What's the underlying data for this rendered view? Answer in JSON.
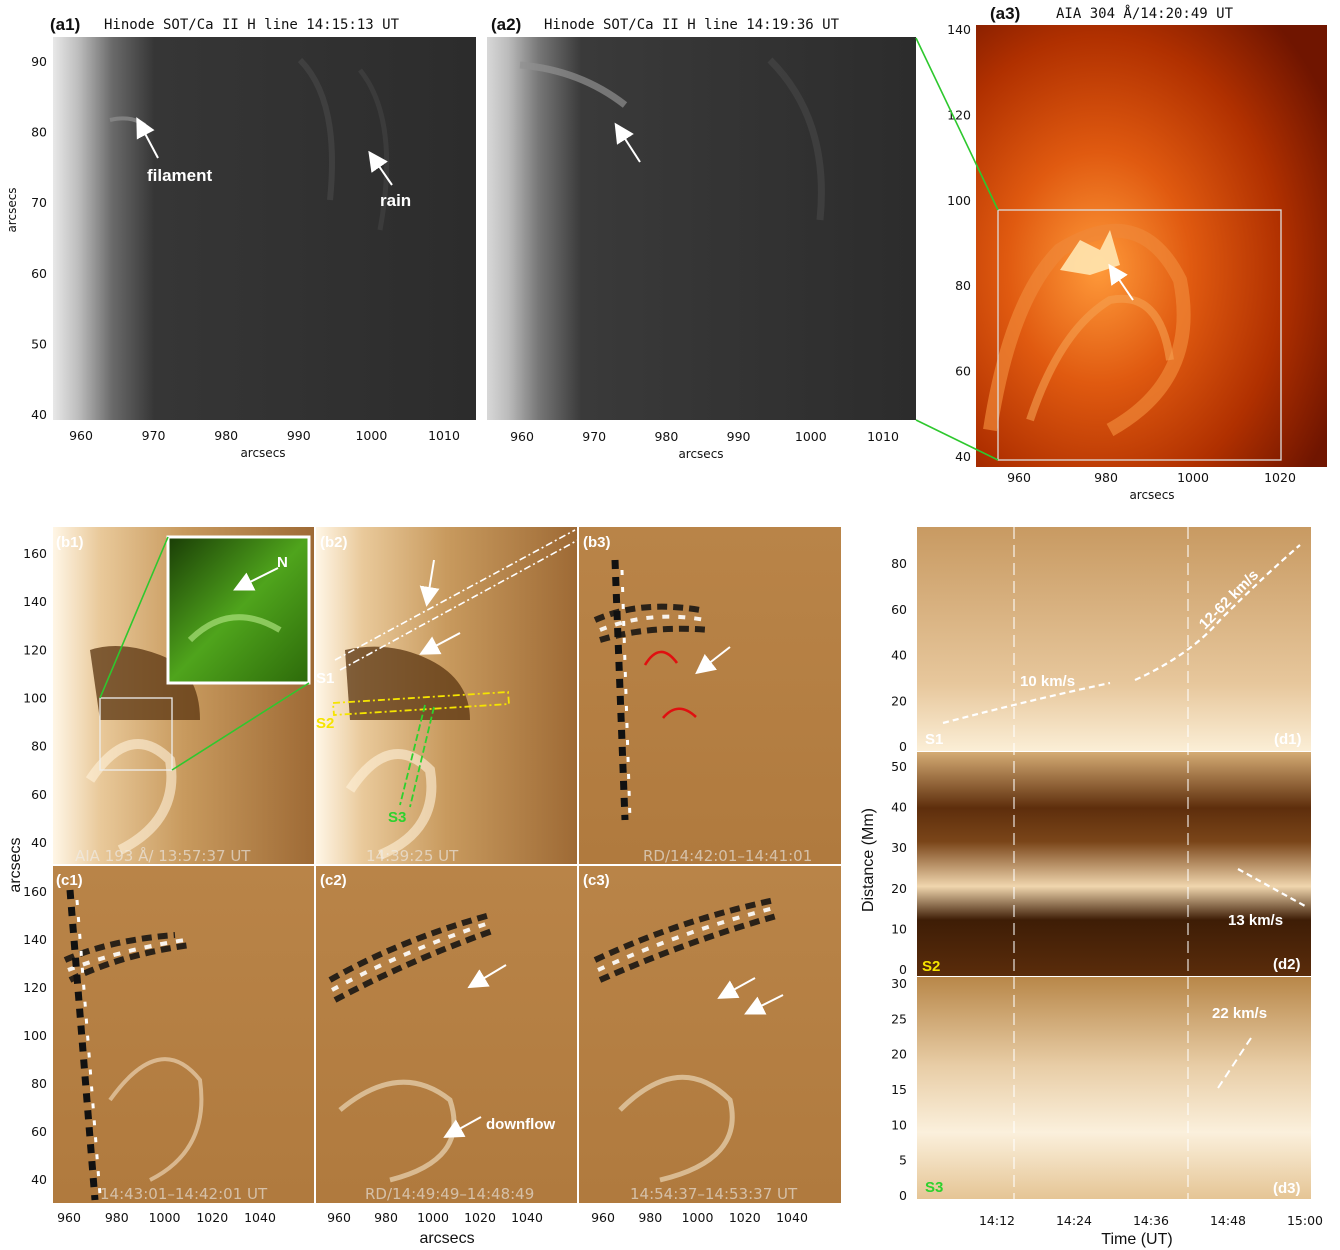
{
  "row_a": {
    "a1": {
      "label": "(a1)",
      "title": "Hinode SOT/Ca II H line   14:15:13 UT",
      "annotations": [
        "filament",
        "rain"
      ]
    },
    "a2": {
      "label": "(a2)",
      "title": "Hinode SOT/Ca II H line   14:19:36 UT"
    },
    "a3": {
      "label": "(a3)",
      "title": "AIA 304 Å/14:20:49 UT"
    },
    "xlabel": "arcsecs",
    "ylabel": "arcsecs",
    "sot_xticks": [
      "960",
      "970",
      "980",
      "990",
      "1000",
      "1010"
    ],
    "sot_yticks": [
      "90",
      "80",
      "70",
      "60",
      "50",
      "40"
    ],
    "aia_xticks": [
      "960",
      "980",
      "1000",
      "1020"
    ],
    "aia_yticks": [
      "140",
      "120",
      "100",
      "80",
      "60",
      "40"
    ]
  },
  "row_bc": {
    "b1": {
      "label": "(b1)",
      "footer": "AIA 193 Å/ 13:57:37   UT",
      "inset_label": "N"
    },
    "b2": {
      "label": "(b2)",
      "footer": "14:39:25   UT",
      "slits": [
        "S1",
        "S2",
        "S3"
      ]
    },
    "b3": {
      "label": "(b3)",
      "footer": "RD/14:42:01–14:41:01"
    },
    "c1": {
      "label": "(c1)",
      "footer": "14:43:01–14:42:01   UT"
    },
    "c2": {
      "label": "(c2)",
      "footer": "RD/14:49:49–14:48:49",
      "annotation": "downflow"
    },
    "c3": {
      "label": "(c3)",
      "footer": "14:54:37–14:53:37   UT"
    },
    "xlabel": "arcsecs",
    "ylabel": "arcsecs",
    "xticks": [
      "960",
      "980",
      "1000",
      "1020",
      "1040"
    ],
    "yticks": [
      "160",
      "140",
      "120",
      "100",
      "80",
      "60",
      "40"
    ]
  },
  "row_d": {
    "d1": {
      "label": "(d1)",
      "slit": "S1",
      "speeds": [
        "10 km/s",
        "12-62 km/s"
      ],
      "yticks": [
        "80",
        "60",
        "40",
        "20",
        "0"
      ]
    },
    "d2": {
      "label": "(d2)",
      "slit": "S2",
      "speeds": [
        "13 km/s"
      ],
      "yticks": [
        "50",
        "40",
        "30",
        "20",
        "10",
        "0"
      ]
    },
    "d3": {
      "label": "(d3)",
      "slit": "S3",
      "speeds": [
        "22 km/s"
      ],
      "yticks": [
        "30",
        "25",
        "20",
        "15",
        "10",
        "5",
        "0"
      ]
    },
    "xticks": [
      "14:12",
      "14:24",
      "14:36",
      "14:48",
      "15:00"
    ],
    "xlabel": "Time (UT)",
    "ylabel": "Distance (Mm)"
  },
  "colors": {
    "sot_bg": "#2a2a2a",
    "aia304": "#c23a00",
    "aia193": "#b07a3e",
    "slit_s1": "#ffffff",
    "slit_s2": "#f5e400",
    "slit_s3": "#2ed12e",
    "connector": "#2ec82e",
    "arc": "#e01010"
  }
}
